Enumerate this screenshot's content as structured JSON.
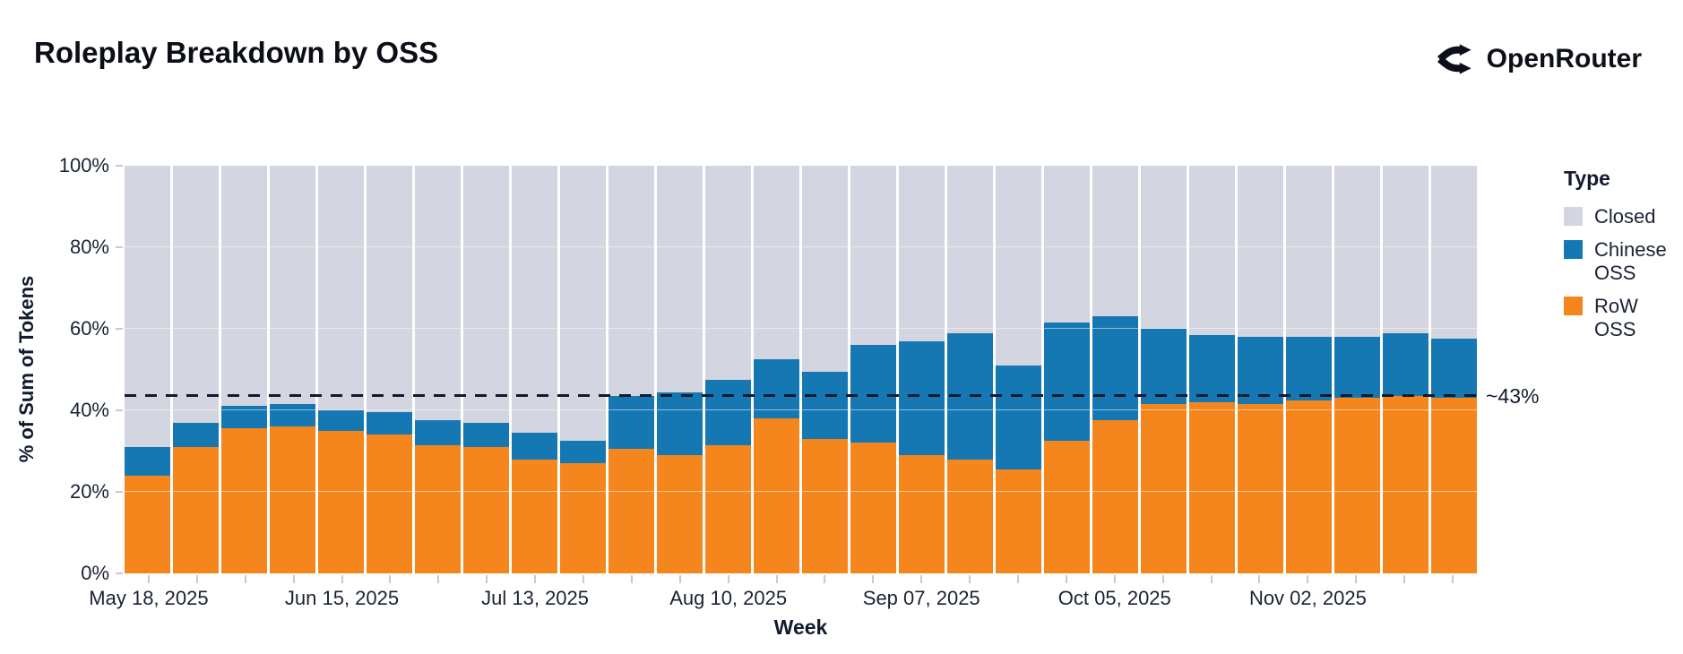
{
  "header": {
    "title": "Roleplay Breakdown by OSS",
    "brand": "OpenRouter"
  },
  "chart_data": {
    "type": "bar",
    "stacked": true,
    "title": "Roleplay Breakdown by OSS",
    "xlabel": "Week",
    "ylabel": "% of Sum of Tokens",
    "ylim": [
      0,
      100
    ],
    "grid": true,
    "y_ticks": [
      "0%",
      "20%",
      "40%",
      "60%",
      "80%",
      "100%"
    ],
    "x_ticks_shown": [
      "May 18, 2025",
      "Jun 15, 2025",
      "Jul 13, 2025",
      "Aug 10, 2025",
      "Sep 07, 2025",
      "Oct 05, 2025",
      "Nov 02, 2025"
    ],
    "categories": [
      "May 18, 2025",
      "May 25, 2025",
      "Jun 01, 2025",
      "Jun 08, 2025",
      "Jun 15, 2025",
      "Jun 22, 2025",
      "Jun 29, 2025",
      "Jul 06, 2025",
      "Jul 13, 2025",
      "Jul 20, 2025",
      "Jul 27, 2025",
      "Aug 03, 2025",
      "Aug 10, 2025",
      "Aug 17, 2025",
      "Aug 24, 2025",
      "Aug 31, 2025",
      "Sep 07, 2025",
      "Sep 14, 2025",
      "Sep 21, 2025",
      "Sep 28, 2025",
      "Oct 05, 2025",
      "Oct 12, 2025",
      "Oct 19, 2025",
      "Oct 26, 2025",
      "Nov 02, 2025",
      "Nov 09, 2025",
      "Nov 16, 2025",
      "Nov 23, 2025"
    ],
    "series": [
      {
        "name": "RoW OSS",
        "color": "#F5861D",
        "values": [
          24,
          31,
          35.5,
          36,
          35,
          34,
          31.5,
          31,
          28,
          27,
          30.5,
          29,
          31.5,
          38,
          33,
          32,
          29,
          28,
          25.5,
          32.5,
          37.5,
          41.5,
          42,
          41.5,
          42.5,
          43,
          43.5,
          43
        ]
      },
      {
        "name": "Chinese OSS",
        "color": "#1678B3",
        "values": [
          7,
          6,
          5.5,
          5.5,
          5,
          5.5,
          6,
          6,
          6.5,
          5.5,
          13,
          15.5,
          16,
          14.5,
          16.5,
          24,
          28,
          31,
          25.5,
          29,
          25.5,
          18.5,
          16.5,
          16.5,
          15.5,
          15,
          15.5,
          14.5
        ]
      },
      {
        "name": "Closed",
        "color": "#D3D5E0",
        "values": [
          69,
          63,
          59,
          58.5,
          60,
          60.5,
          62.5,
          63,
          65.5,
          67.5,
          56.5,
          55.5,
          52.5,
          47.5,
          50.5,
          44,
          43,
          41,
          49,
          38.5,
          37,
          40,
          41.5,
          42,
          42,
          42,
          41,
          42.5
        ]
      }
    ],
    "legend": {
      "title": "Type",
      "position": "right",
      "items": [
        {
          "label": "Closed",
          "color": "#D3D5E0"
        },
        {
          "label": "Chinese OSS",
          "color": "#1678B3"
        },
        {
          "label": "RoW OSS",
          "color": "#F5861D"
        }
      ]
    },
    "annotation": {
      "value": 43.3,
      "label": "~43%"
    }
  },
  "colors": {
    "row_oss": "#F5861D",
    "chinese_oss": "#1678B3",
    "closed": "#D3D5E0",
    "dashed_line": "#111A2B",
    "text": "#1A2235",
    "tick": "#C8CAD3"
  }
}
